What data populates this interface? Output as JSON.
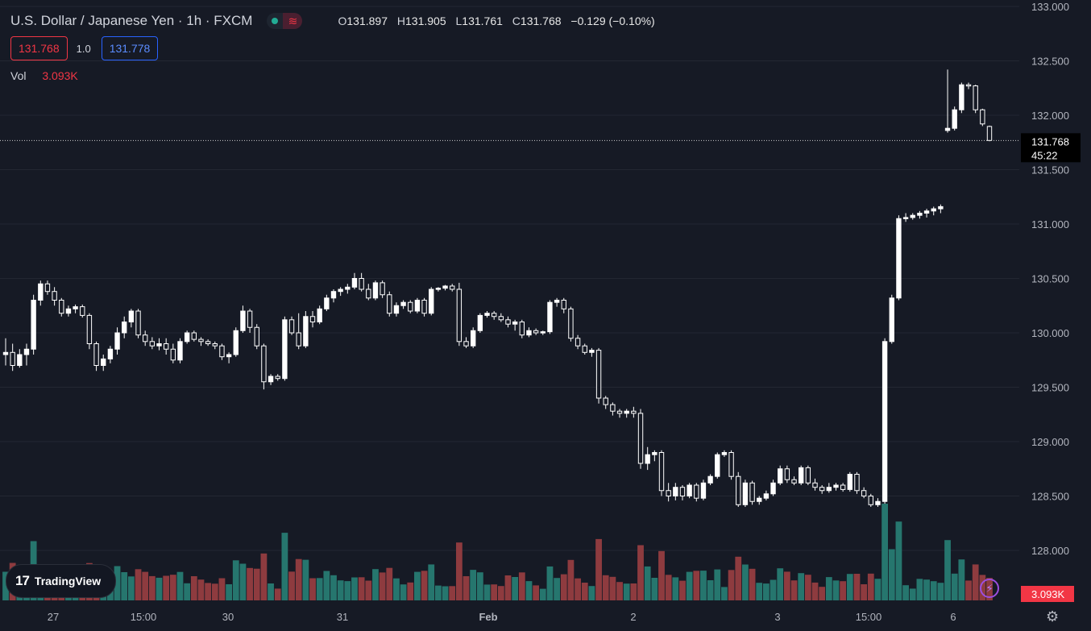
{
  "header": {
    "symbol_title": "U.S. Dollar / Japanese Yen · 1h · FXCM",
    "ohlc": {
      "open_label": "O",
      "open": "131.897",
      "high_label": "H",
      "high": "131.905",
      "low_label": "L",
      "low": "131.761",
      "close_label": "C",
      "close": "131.768",
      "change": "−0.129 (−0.10%)"
    },
    "status_icon": "green-dot-icon",
    "wave_icon": "wave-icon"
  },
  "quotes": {
    "sell": "131.768",
    "spread": "1.0",
    "buy": "131.778"
  },
  "volume_legend": {
    "label": "Vol",
    "value": "3.093K"
  },
  "branding": {
    "logo_mark": "17",
    "logo_text": "TradingView"
  },
  "price_axis": {
    "last_price": "131.768",
    "countdown": "45:22",
    "last_volume": "3.093K"
  },
  "colors": {
    "background": "#161a25",
    "grid": "#232732",
    "candle_up": "#ffffff",
    "candle_down": "#161a25",
    "volume_up": "#26766e",
    "volume_down": "#8e3b3f",
    "sell_accent": "#f23645",
    "buy_accent": "#2962ff"
  },
  "chart_data": {
    "type": "candlestick",
    "title": "U.S. Dollar / Japanese Yen · 1h · FXCM",
    "interval": "1h",
    "y_ticks": [
      "128.000",
      "128.500",
      "129.000",
      "129.500",
      "130.000",
      "130.500",
      "131.000",
      "131.500",
      "132.000",
      "132.500",
      "133.000"
    ],
    "ylim": [
      127.5,
      133.0
    ],
    "x_tick_labels": [
      "27",
      "15:00",
      "30",
      "31",
      "Feb",
      "2",
      "3",
      "15:00",
      "6"
    ],
    "grid": true,
    "last_price": 131.768,
    "ohlc_approx": [
      [
        129.8,
        129.95,
        129.7,
        129.82
      ],
      [
        129.82,
        129.9,
        129.65,
        129.7
      ],
      [
        129.7,
        129.85,
        129.68,
        129.8
      ],
      [
        129.8,
        129.9,
        129.7,
        129.85
      ],
      [
        129.85,
        130.35,
        129.8,
        130.3
      ],
      [
        130.3,
        130.48,
        130.25,
        130.45
      ],
      [
        130.45,
        130.48,
        130.35,
        130.38
      ],
      [
        130.38,
        130.42,
        130.25,
        130.3
      ],
      [
        130.3,
        130.32,
        130.15,
        130.18
      ],
      [
        130.18,
        130.25,
        130.15,
        130.22
      ],
      [
        130.22,
        130.26,
        130.18,
        130.24
      ],
      [
        130.24,
        130.26,
        130.14,
        130.16
      ],
      [
        130.16,
        130.18,
        129.85,
        129.9
      ],
      [
        129.9,
        129.92,
        129.65,
        129.7
      ],
      [
        129.7,
        129.8,
        129.65,
        129.76
      ],
      [
        129.76,
        129.88,
        129.72,
        129.85
      ],
      [
        129.85,
        130.05,
        129.8,
        130.0
      ],
      [
        130.0,
        130.15,
        129.95,
        130.1
      ],
      [
        130.1,
        130.22,
        130.05,
        130.2
      ],
      [
        130.2,
        130.22,
        129.95,
        129.98
      ],
      [
        129.98,
        130.02,
        129.88,
        129.92
      ],
      [
        129.92,
        129.96,
        129.85,
        129.88
      ],
      [
        129.88,
        129.95,
        129.84,
        129.9
      ],
      [
        129.9,
        129.95,
        129.8,
        129.85
      ],
      [
        129.85,
        129.9,
        129.72,
        129.75
      ],
      [
        129.75,
        129.95,
        129.72,
        129.92
      ],
      [
        129.92,
        130.02,
        129.9,
        130.0
      ],
      [
        130.0,
        130.02,
        129.92,
        129.94
      ],
      [
        129.94,
        129.96,
        129.88,
        129.92
      ],
      [
        129.92,
        129.94,
        129.88,
        129.9
      ],
      [
        129.9,
        129.92,
        129.85,
        129.88
      ],
      [
        129.88,
        129.9,
        129.75,
        129.78
      ],
      [
        129.78,
        129.82,
        129.72,
        129.8
      ],
      [
        129.8,
        130.05,
        129.78,
        130.02
      ],
      [
        130.02,
        130.25,
        130.0,
        130.2
      ],
      [
        130.2,
        130.22,
        130.0,
        130.05
      ],
      [
        130.05,
        130.08,
        129.85,
        129.88
      ],
      [
        129.88,
        129.9,
        129.48,
        129.55
      ],
      [
        129.55,
        129.62,
        129.52,
        129.6
      ],
      [
        129.6,
        129.62,
        129.56,
        129.58
      ],
      [
        129.58,
        130.15,
        129.56,
        130.12
      ],
      [
        130.12,
        130.15,
        129.98,
        130.0
      ],
      [
        130.0,
        130.18,
        129.85,
        129.88
      ],
      [
        129.88,
        130.2,
        129.86,
        130.15
      ],
      [
        130.15,
        130.2,
        130.05,
        130.1
      ],
      [
        130.1,
        130.25,
        130.08,
        130.22
      ],
      [
        130.22,
        130.35,
        130.2,
        130.32
      ],
      [
        130.32,
        130.4,
        130.28,
        130.38
      ],
      [
        130.38,
        130.42,
        130.34,
        130.4
      ],
      [
        130.4,
        130.45,
        130.36,
        130.42
      ],
      [
        130.42,
        130.55,
        130.4,
        130.5
      ],
      [
        130.5,
        130.55,
        130.38,
        130.4
      ],
      [
        130.4,
        130.45,
        130.3,
        130.32
      ],
      [
        130.32,
        130.48,
        130.3,
        130.46
      ],
      [
        130.46,
        130.48,
        130.32,
        130.35
      ],
      [
        130.35,
        130.38,
        130.15,
        130.18
      ],
      [
        130.18,
        130.28,
        130.15,
        130.25
      ],
      [
        130.25,
        130.3,
        130.22,
        130.28
      ],
      [
        130.28,
        130.3,
        130.18,
        130.2
      ],
      [
        130.2,
        130.32,
        130.18,
        130.3
      ],
      [
        130.3,
        130.32,
        130.15,
        130.18
      ],
      [
        130.18,
        130.42,
        130.16,
        130.4
      ],
      [
        130.4,
        130.42,
        130.38,
        130.41
      ],
      [
        130.41,
        130.44,
        130.39,
        130.43
      ],
      [
        130.43,
        130.45,
        130.38,
        130.4
      ],
      [
        130.4,
        130.46,
        129.88,
        129.92
      ],
      [
        129.92,
        129.96,
        129.86,
        129.88
      ],
      [
        129.88,
        130.05,
        129.86,
        130.02
      ],
      [
        130.02,
        130.18,
        130.0,
        130.16
      ],
      [
        130.16,
        130.2,
        130.14,
        130.18
      ],
      [
        130.18,
        130.2,
        130.12,
        130.15
      ],
      [
        130.15,
        130.18,
        130.1,
        130.12
      ],
      [
        130.12,
        130.15,
        130.05,
        130.08
      ],
      [
        130.08,
        130.12,
        130.02,
        130.1
      ],
      [
        130.1,
        130.12,
        129.95,
        129.98
      ],
      [
        129.98,
        130.05,
        129.96,
        130.02
      ],
      [
        130.02,
        130.04,
        129.98,
        130.0
      ],
      [
        130.0,
        130.02,
        129.98,
        130.01
      ],
      [
        130.01,
        130.3,
        129.99,
        130.28
      ],
      [
        130.28,
        130.32,
        130.24,
        130.3
      ],
      [
        130.3,
        130.32,
        130.18,
        130.22
      ],
      [
        130.22,
        130.24,
        129.92,
        129.95
      ],
      [
        129.95,
        129.98,
        129.85,
        129.88
      ],
      [
        129.88,
        129.9,
        129.8,
        129.82
      ],
      [
        129.82,
        129.86,
        129.78,
        129.84
      ],
      [
        129.84,
        129.86,
        129.35,
        129.4
      ],
      [
        129.4,
        129.42,
        129.3,
        129.34
      ],
      [
        129.34,
        129.36,
        129.24,
        129.28
      ],
      [
        129.28,
        129.3,
        129.22,
        129.26
      ],
      [
        129.26,
        129.3,
        129.22,
        129.28
      ],
      [
        129.28,
        129.32,
        129.22,
        129.26
      ],
      [
        129.26,
        129.3,
        128.75,
        128.8
      ],
      [
        128.8,
        128.95,
        128.74,
        128.88
      ],
      [
        128.88,
        128.92,
        128.82,
        128.9
      ],
      [
        128.9,
        128.92,
        128.5,
        128.55
      ],
      [
        128.55,
        128.62,
        128.45,
        128.5
      ],
      [
        128.5,
        128.62,
        128.46,
        128.58
      ],
      [
        128.58,
        128.6,
        128.46,
        128.5
      ],
      [
        128.5,
        128.62,
        128.48,
        128.6
      ],
      [
        128.6,
        128.62,
        128.45,
        128.48
      ],
      [
        128.48,
        128.65,
        128.46,
        128.62
      ],
      [
        128.62,
        128.7,
        128.6,
        128.68
      ],
      [
        128.68,
        128.9,
        128.66,
        128.88
      ],
      [
        128.88,
        128.92,
        128.86,
        128.9
      ],
      [
        128.9,
        128.92,
        128.65,
        128.68
      ],
      [
        128.68,
        128.72,
        128.4,
        128.42
      ],
      [
        128.42,
        128.65,
        128.4,
        128.62
      ],
      [
        128.62,
        128.64,
        128.42,
        128.45
      ],
      [
        128.45,
        128.5,
        128.42,
        128.48
      ],
      [
        128.48,
        128.55,
        128.46,
        128.52
      ],
      [
        128.52,
        128.65,
        128.5,
        128.62
      ],
      [
        128.62,
        128.78,
        128.6,
        128.75
      ],
      [
        128.75,
        128.78,
        128.62,
        128.65
      ],
      [
        128.65,
        128.68,
        128.6,
        128.62
      ],
      [
        128.62,
        128.78,
        128.6,
        128.76
      ],
      [
        128.76,
        128.78,
        128.6,
        128.62
      ],
      [
        128.62,
        128.66,
        128.55,
        128.58
      ],
      [
        128.58,
        128.6,
        128.52,
        128.55
      ],
      [
        128.55,
        128.62,
        128.53,
        128.58
      ],
      [
        128.58,
        128.62,
        128.55,
        128.6
      ],
      [
        128.6,
        128.62,
        128.54,
        128.56
      ],
      [
        128.56,
        128.72,
        128.54,
        128.7
      ],
      [
        128.7,
        128.72,
        128.52,
        128.55
      ],
      [
        128.55,
        128.58,
        128.48,
        128.5
      ],
      [
        128.5,
        128.52,
        128.4,
        128.42
      ],
      [
        128.42,
        128.48,
        128.4,
        128.45
      ],
      [
        128.45,
        129.95,
        128.43,
        129.92
      ],
      [
        129.92,
        130.35,
        129.9,
        130.32
      ],
      [
        130.32,
        131.08,
        130.3,
        131.05
      ],
      [
        131.05,
        131.1,
        131.02,
        131.06
      ],
      [
        131.06,
        131.1,
        131.04,
        131.08
      ],
      [
        131.08,
        131.12,
        131.05,
        131.1
      ],
      [
        131.1,
        131.14,
        131.06,
        131.12
      ],
      [
        131.12,
        131.16,
        131.08,
        131.14
      ],
      [
        131.14,
        131.18,
        131.1,
        131.16
      ],
      [
        131.86,
        132.42,
        131.84,
        131.88
      ],
      [
        131.88,
        132.08,
        131.86,
        132.05
      ],
      [
        132.05,
        132.3,
        132.02,
        132.28
      ],
      [
        132.28,
        132.3,
        132.24,
        132.27
      ],
      [
        132.27,
        132.28,
        132.02,
        132.05
      ],
      [
        132.05,
        132.06,
        131.9,
        131.92
      ],
      [
        131.897,
        131.905,
        131.761,
        131.768
      ]
    ],
    "volume_note": "volume histogram beneath price; teal = up bar, red = down bar; last bar 3.093K"
  }
}
